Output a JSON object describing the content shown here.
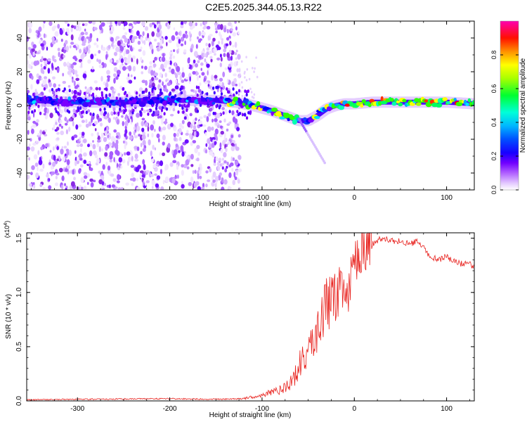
{
  "title": "C2E5.2025.344.05.13.R22",
  "chart_data": [
    {
      "type": "heatmap",
      "xlabel": "Height of straight line (km)",
      "ylabel": "Frequency (Hz)",
      "xlim": [
        -355,
        130
      ],
      "ylim": [
        -50,
        50
      ],
      "xticks": [
        -300,
        -200,
        -100,
        0,
        100
      ],
      "yticks": [
        -40,
        -20,
        0,
        20,
        40
      ],
      "colorbar": {
        "label": "Normalized spectral amplitude",
        "range": [
          0,
          1
        ],
        "ticks": [
          "0.0",
          "0.2",
          "0.4",
          "0.6",
          "0.8"
        ],
        "colors": [
          "#ffffff",
          "#d9b3ff",
          "#8a2be2",
          "#4000ff",
          "#0000ff",
          "#00b0ff",
          "#00ffd0",
          "#00ff00",
          "#ffff00",
          "#ff8000",
          "#ff0000",
          "#ff00a0"
        ]
      },
      "signal_track": {
        "x": [
          -355,
          -300,
          -250,
          -200,
          -150,
          -130,
          -110,
          -90,
          -75,
          -60,
          -50,
          -40,
          -30,
          -20,
          -10,
          0,
          20,
          40,
          60,
          80,
          100,
          130
        ],
        "frequency": [
          3,
          2,
          2,
          3,
          3,
          2,
          0,
          -3,
          -6,
          -9,
          -9,
          -6,
          -2,
          0,
          1,
          1,
          2,
          2,
          2,
          2,
          2,
          1
        ]
      },
      "noise_region_x": [
        -355,
        -130
      ],
      "noise_branch": {
        "x": [
          -60,
          -32
        ],
        "frequency": [
          -8,
          -34
        ]
      }
    },
    {
      "type": "line",
      "xlabel": "Height of straight line (km)",
      "ylabel": "SNR (10 * v/v)",
      "scale_label": "(x10",
      "scale_exponent": "4",
      "xlim": [
        -355,
        130
      ],
      "ylim": [
        0,
        1.55
      ],
      "xticks": [
        -300,
        -200,
        -100,
        0,
        100
      ],
      "yticks": [
        "0.0",
        "0.5",
        "1.0",
        "1.5"
      ],
      "ytick_values": [
        0,
        0.5,
        1.0,
        1.5
      ],
      "grid": false,
      "color": "#e8231f",
      "series": [
        {
          "x": [
            -355,
            -300,
            -250,
            -200,
            -150,
            -120,
            -100,
            -90,
            -80,
            -70,
            -60,
            -50,
            -40,
            -30,
            -20,
            -10,
            0,
            10,
            20,
            30,
            40,
            50,
            60,
            70,
            80,
            90,
            100,
            110,
            120,
            130
          ],
          "values": [
            0.01,
            0.015,
            0.018,
            0.02,
            0.015,
            0.02,
            0.05,
            0.08,
            0.1,
            0.18,
            0.28,
            0.42,
            0.6,
            0.8,
            0.85,
            0.95,
            1.1,
            1.35,
            1.45,
            1.5,
            1.48,
            1.47,
            1.45,
            1.47,
            1.35,
            1.3,
            1.33,
            1.28,
            1.26,
            1.25
          ]
        }
      ]
    }
  ]
}
